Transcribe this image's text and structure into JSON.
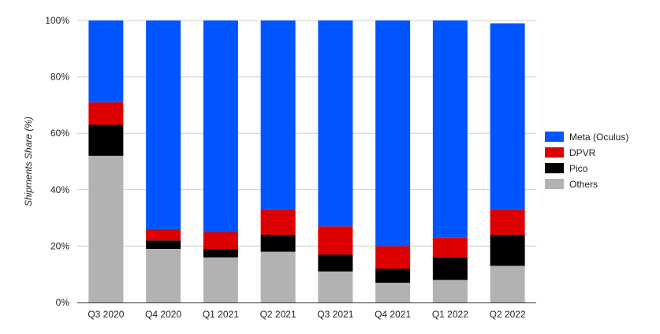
{
  "chart_data": {
    "type": "bar",
    "stacked": true,
    "ylabel": "Shipments Share (%)",
    "ylim": [
      0,
      100
    ],
    "yticks": [
      "0%",
      "20%",
      "40%",
      "60%",
      "80%",
      "100%"
    ],
    "grid": true,
    "legend_position": "right",
    "categories": [
      "Q3 2020",
      "Q4 2020",
      "Q1 2021",
      "Q2 2021",
      "Q3 2021",
      "Q4 2021",
      "Q1 2022",
      "Q2 2022"
    ],
    "series": [
      {
        "name": "Others",
        "color": "#b2b2b2",
        "values": [
          52,
          19,
          16,
          18,
          11,
          7,
          8,
          13
        ]
      },
      {
        "name": "Pico",
        "color": "#000000",
        "values": [
          11,
          3,
          3,
          6,
          6,
          5,
          8,
          11
        ]
      },
      {
        "name": "DPVR",
        "color": "#dd0000",
        "values": [
          8,
          4,
          6,
          9,
          10,
          8,
          7,
          9
        ]
      },
      {
        "name": "Meta (Oculus)",
        "color": "#0055ff",
        "values": [
          29,
          74,
          75,
          67,
          73,
          80,
          77,
          66
        ]
      }
    ],
    "legend_order": [
      "Meta (Oculus)",
      "DPVR",
      "Pico",
      "Others"
    ]
  }
}
